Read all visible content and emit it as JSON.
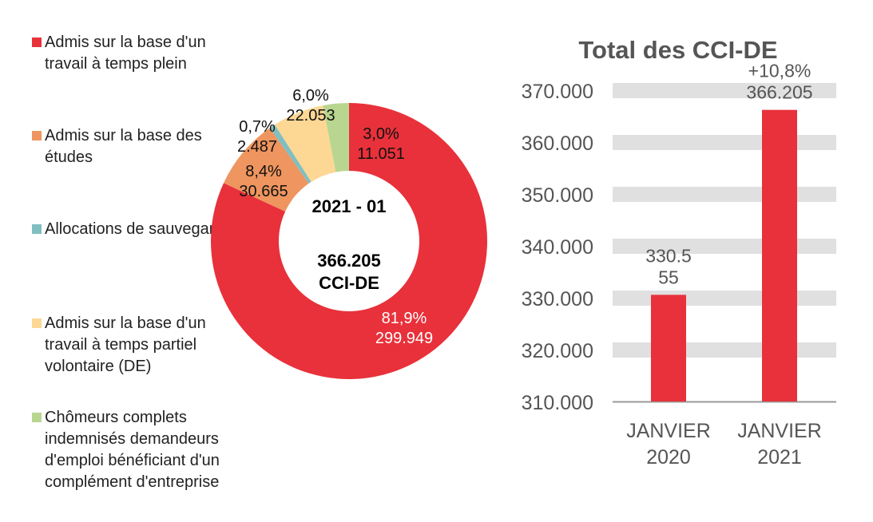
{
  "chart_data": [
    {
      "type": "pie",
      "subtype": "donut",
      "center_title": "2021 - 01",
      "center_value": "366.205",
      "center_unit": "CCI-DE",
      "slices": [
        {
          "name": "Admis sur la base d'un travail à temps plein",
          "value": 299949,
          "value_label": "299.949",
          "pct_label": "81,9%",
          "color": "#E8313A"
        },
        {
          "name": "Admis sur la base des études",
          "value": 30665,
          "value_label": "30.665",
          "pct_label": "8,4%",
          "color": "#EF955F"
        },
        {
          "name": "Allocations de sauvegarde",
          "value": 2487,
          "value_label": "2.487",
          "pct_label": "0,7%",
          "color": "#7FBFC1"
        },
        {
          "name": "Admis sur la base d'un travail à temps partiel volontaire (DE)",
          "value": 22053,
          "value_label": "22.053",
          "pct_label": "6,0%",
          "color": "#FDD794"
        },
        {
          "name": "Chômeurs complets indemnisés demandeurs d'emploi bénéficiant d'un complément d'entreprise",
          "value": 11051,
          "value_label": "11.051",
          "pct_label": "3,0%",
          "color": "#B8D68F"
        }
      ],
      "legend_position": "left"
    },
    {
      "type": "bar",
      "title": "Total des CCI-DE",
      "categories": [
        "JANVIER 2020",
        "JANVIER 2021"
      ],
      "category_lines": [
        [
          "JANVIER",
          "2020"
        ],
        [
          "JANVIER",
          "2021"
        ]
      ],
      "values": [
        330555,
        366205
      ],
      "data_labels": [
        [
          "330.5",
          "55"
        ],
        [
          "+10,8%",
          "366.205"
        ]
      ],
      "ylim": [
        310000,
        370000
      ],
      "yticks": [
        310000,
        320000,
        330000,
        340000,
        350000,
        360000,
        370000
      ],
      "ytick_labels": [
        "310.000",
        "320.000",
        "330.000",
        "340.000",
        "350.000",
        "360.000",
        "370.000"
      ],
      "grid": "banded",
      "bar_color": "#E8313A",
      "grid_color": "#E0E0E0",
      "text_color": "#555555"
    }
  ]
}
